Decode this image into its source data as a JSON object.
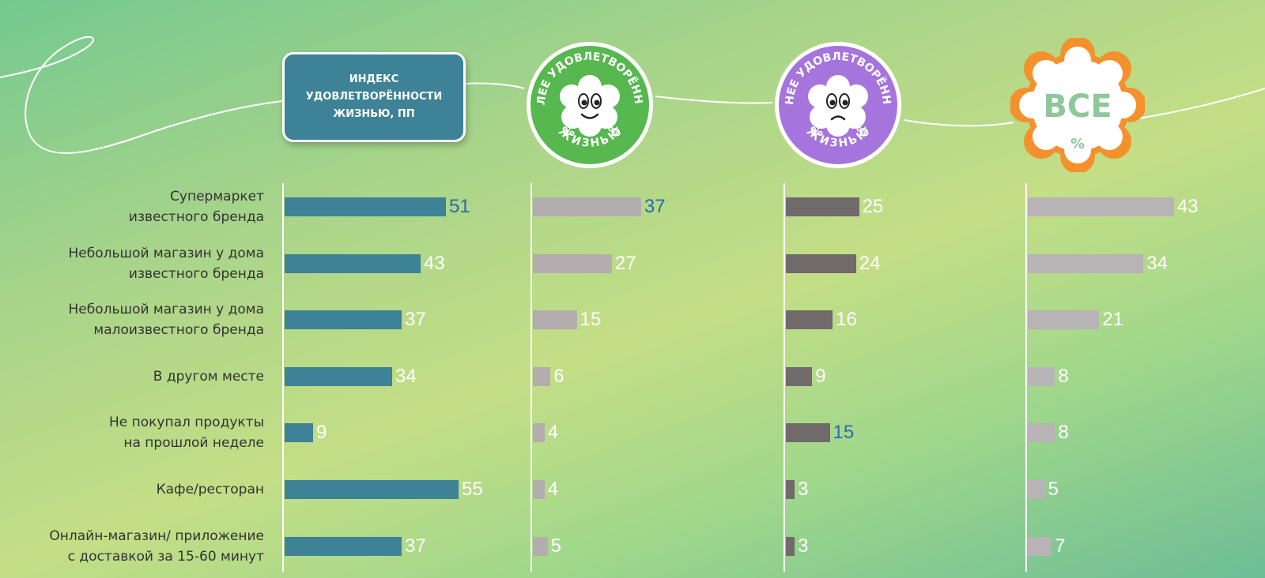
{
  "header": {
    "index_title": "ИНДЕКС\nУДОВЛЕТВОРЁННОСТИ\nЖИЗНЬЮ, ПП",
    "badge_more": {
      "line1": "БОЛЕЕ УДОВЛЕТВОРЁННЫЕ",
      "line2": "ЖИЗНЬЮ",
      "pct": "%"
    },
    "badge_less": {
      "line1": "МЕНЕЕ УДОВЛЕТВОРЁННЫЕ",
      "line2": "ЖИЗНЬЮ",
      "pct": "%"
    },
    "badge_all": {
      "title": "ВСЕ",
      "pct": "%"
    }
  },
  "colors": {
    "index_bar": "#3d8296",
    "more_bar": "#b3adb0",
    "less_bar": "#706a6b",
    "all_bar": "#b8b3b4",
    "label_white": "#ffffff",
    "label_highlight": "#2a6ab0",
    "badge_more": "#56b84f",
    "badge_less": "#a574dc",
    "badge_all_ring": "#f4912c",
    "badge_all_text": "#8dc79a"
  },
  "chart_data": {
    "type": "bar",
    "orientation": "horizontal",
    "categories": [
      "Супермаркет\nизвестного бренда",
      "Небольшой магазин у дома\nизвестного бренда",
      "Небольшой магазин у дома\nмалоизвестного бренда",
      "В другом месте",
      "Не покупал продукты\nна прошлой неделе",
      "Кафе/ресторан",
      "Онлайн-магазин/ приложение\nс доставкой за 15-60 минут"
    ],
    "series": [
      {
        "name": "ИНДЕКС УДОВЛЕТВОРЁННОСТИ ЖИЗНЬЮ, ПП",
        "values": [
          51,
          43,
          37,
          34,
          9,
          55,
          37
        ],
        "highlight": [
          0
        ]
      },
      {
        "name": "БОЛЕЕ УДОВЛЕТВОРЁННЫЕ ЖИЗНЬЮ",
        "values": [
          37,
          27,
          15,
          6,
          4,
          4,
          5
        ],
        "highlight": [
          0
        ]
      },
      {
        "name": "МЕНЕЕ УДОВЛЕТВОРЁННЫЕ ЖИЗНЬЮ",
        "values": [
          25,
          24,
          16,
          9,
          15,
          3,
          3
        ],
        "highlight": [
          4
        ]
      },
      {
        "name": "ВСЕ",
        "values": [
          43,
          34,
          21,
          8,
          8,
          5,
          7
        ],
        "highlight": []
      }
    ]
  }
}
